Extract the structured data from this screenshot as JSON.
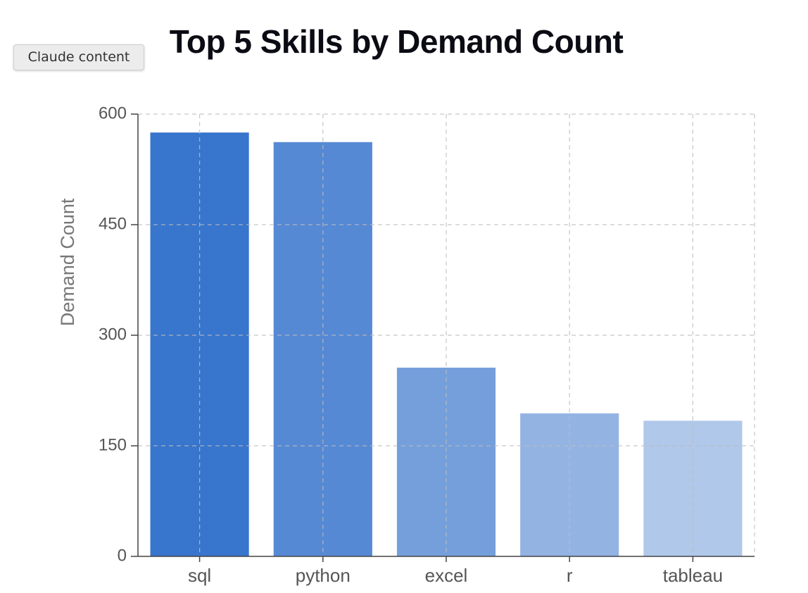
{
  "badge": {
    "label": "Claude content"
  },
  "chart_data": {
    "type": "bar",
    "title": "Top 5 Skills by Demand Count",
    "xlabel": "",
    "ylabel": "Demand Count",
    "categories": [
      "sql",
      "python",
      "excel",
      "r",
      "tableau"
    ],
    "values": [
      575,
      562,
      256,
      194,
      184
    ],
    "ylim": [
      0,
      600
    ],
    "yticks": [
      0,
      150,
      300,
      450,
      600
    ],
    "grid": true,
    "legend": "none",
    "colors": [
      "#3875cc",
      "#5689d4",
      "#749fdb",
      "#93b3e3",
      "#b0c8ea"
    ],
    "axis_color": "#444444",
    "grid_color": "#bdbdbd",
    "tick_label_color": "#555555",
    "ylabel_color": "#777777"
  }
}
